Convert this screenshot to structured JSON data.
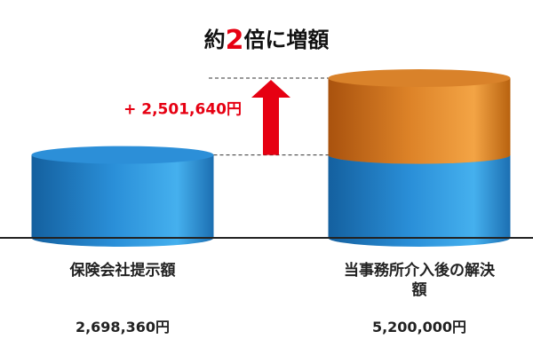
{
  "chart_data": {
    "type": "bar",
    "title": {
      "prefix": "約",
      "emphasis": "2",
      "suffix": "倍に増額"
    },
    "categories": [
      "保険会社提示額",
      "当事務所介入後の解決額"
    ],
    "series": [
      {
        "color": "#2b8fd8",
        "values": [
          2698360,
          2698360
        ]
      },
      {
        "color": "#e08a2a",
        "values": [
          null,
          2501640
        ]
      }
    ],
    "totals": [
      2698360,
      5200000
    ],
    "total_labels": [
      "2,698,360円",
      "5,200,000円"
    ],
    "annotation": {
      "value": 2501640,
      "label": "+ 2,501,640円",
      "color": "#e60012"
    }
  }
}
